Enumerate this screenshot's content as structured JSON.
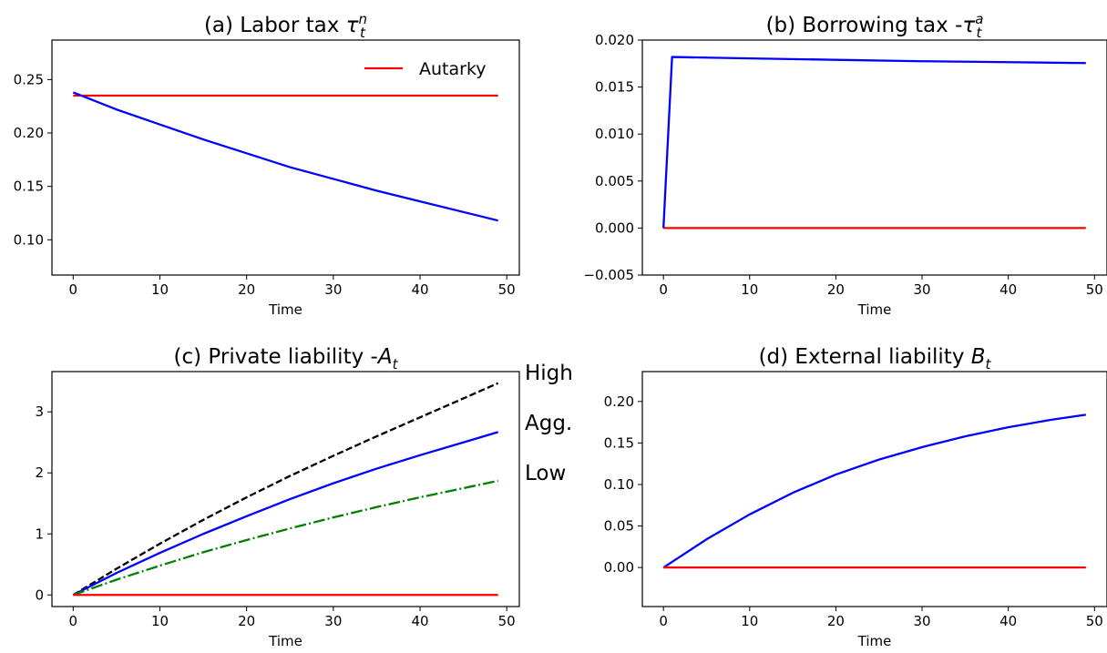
{
  "chart_data": [
    {
      "type": "line",
      "title": "(a) Labor tax",
      "title_math": {
        "sym": "τ",
        "sub": "t",
        "sup": "n",
        "prefix": ""
      },
      "xlabel": "Time",
      "ylabel": "",
      "xlim": [
        -2.45,
        51.45
      ],
      "ylim": [
        0.067,
        0.287
      ],
      "xticks": [
        0,
        10,
        20,
        30,
        40,
        50
      ],
      "yticks": [
        0.1,
        0.15,
        0.2,
        0.25
      ],
      "ytick_labels": [
        "0.10",
        "0.15",
        "0.20",
        "0.25"
      ],
      "xtick_labels": [
        "0",
        "10",
        "20",
        "30",
        "40",
        "50"
      ],
      "legend": {
        "location": "top-right",
        "entries": [
          {
            "label": "Autarky",
            "color": "#ff0000"
          }
        ]
      },
      "series": [
        {
          "name": "Autarky",
          "color": "#ff0000",
          "style": "solid",
          "x": [
            0,
            49
          ],
          "y": [
            0.235,
            0.235
          ]
        },
        {
          "color": "#0000ff",
          "style": "solid",
          "x": [
            0,
            5,
            10,
            15,
            20,
            25,
            30,
            35,
            40,
            45,
            49
          ],
          "y": [
            0.238,
            0.222,
            0.208,
            0.194,
            0.181,
            0.168,
            0.157,
            0.146,
            0.136,
            0.126,
            0.118
          ]
        }
      ]
    },
    {
      "type": "line",
      "title": "(b) Borrowing tax -",
      "title_math": {
        "sym": "τ",
        "sub": "t",
        "sup": "a",
        "prefix": "-"
      },
      "xlabel": "Time",
      "ylabel": "",
      "xlim": [
        -2.45,
        51.45
      ],
      "ylim": [
        -0.005,
        0.02
      ],
      "xticks": [
        0,
        10,
        20,
        30,
        40,
        50
      ],
      "yticks": [
        -0.005,
        0.0,
        0.005,
        0.01,
        0.015,
        0.02
      ],
      "ytick_labels": [
        "−0.005",
        "0.000",
        "0.005",
        "0.010",
        "0.015",
        "0.020"
      ],
      "xtick_labels": [
        "0",
        "10",
        "20",
        "30",
        "40",
        "50"
      ],
      "series": [
        {
          "color": "#ff0000",
          "style": "solid",
          "x": [
            0,
            49
          ],
          "y": [
            0.0,
            0.0
          ]
        },
        {
          "color": "#0000ff",
          "style": "solid",
          "x": [
            0,
            1,
            10,
            20,
            30,
            40,
            49
          ],
          "y": [
            0.0,
            0.0182,
            0.01805,
            0.0179,
            0.01775,
            0.01765,
            0.01755
          ]
        }
      ]
    },
    {
      "type": "line",
      "title": "(c) Private liability -",
      "title_math": {
        "sym": "A",
        "sub": "t",
        "sup": "",
        "prefix": "-"
      },
      "xlabel": "Time",
      "ylabel": "",
      "xlim": [
        -2.45,
        51.45
      ],
      "ylim": [
        -0.19,
        3.66
      ],
      "xticks": [
        0,
        10,
        20,
        30,
        40,
        50
      ],
      "yticks": [
        0,
        1,
        2,
        3
      ],
      "ytick_labels": [
        "0",
        "1",
        "2",
        "3"
      ],
      "xtick_labels": [
        "0",
        "10",
        "20",
        "30",
        "40",
        "50"
      ],
      "side_labels": [
        "High",
        "Agg.",
        "Low"
      ],
      "series": [
        {
          "name": "High",
          "color": "#000000",
          "style": "dashed",
          "x": [
            0,
            5,
            10,
            15,
            20,
            25,
            30,
            35,
            40,
            45,
            49
          ],
          "y": [
            0.0,
            0.43,
            0.84,
            1.23,
            1.6,
            1.95,
            2.28,
            2.6,
            2.91,
            3.22,
            3.47
          ]
        },
        {
          "name": "Agg.",
          "color": "#0000ff",
          "style": "solid",
          "x": [
            0,
            5,
            10,
            15,
            20,
            25,
            30,
            35,
            40,
            45,
            49
          ],
          "y": [
            0.0,
            0.36,
            0.69,
            1.0,
            1.29,
            1.57,
            1.83,
            2.07,
            2.29,
            2.5,
            2.67
          ]
        },
        {
          "name": "Low",
          "color": "#008000",
          "style": "dashdot",
          "x": [
            0,
            5,
            10,
            15,
            20,
            25,
            30,
            35,
            40,
            45,
            49
          ],
          "y": [
            0.0,
            0.25,
            0.48,
            0.7,
            0.9,
            1.09,
            1.27,
            1.44,
            1.6,
            1.75,
            1.87
          ]
        },
        {
          "color": "#ff0000",
          "style": "solid",
          "x": [
            0,
            49
          ],
          "y": [
            0.0,
            0.0
          ]
        }
      ]
    },
    {
      "type": "line",
      "title": "(d) External liability",
      "title_math": {
        "sym": "B",
        "sub": "t",
        "sup": "",
        "prefix": ""
      },
      "xlabel": "Time",
      "ylabel": "",
      "xlim": [
        -2.45,
        51.45
      ],
      "ylim": [
        -0.047,
        0.236
      ],
      "xticks": [
        0,
        10,
        20,
        30,
        40,
        50
      ],
      "yticks": [
        0.0,
        0.05,
        0.1,
        0.15,
        0.2
      ],
      "ytick_labels": [
        "0.00",
        "0.05",
        "0.10",
        "0.15",
        "0.20"
      ],
      "xtick_labels": [
        "0",
        "10",
        "20",
        "30",
        "40",
        "50"
      ],
      "series": [
        {
          "color": "#0000ff",
          "style": "solid",
          "x": [
            0,
            5,
            10,
            15,
            20,
            25,
            30,
            35,
            40,
            45,
            49
          ],
          "y": [
            0.0,
            0.034,
            0.064,
            0.09,
            0.112,
            0.13,
            0.145,
            0.158,
            0.169,
            0.178,
            0.184
          ]
        },
        {
          "color": "#ff0000",
          "style": "solid",
          "x": [
            0,
            49
          ],
          "y": [
            0.0,
            0.0
          ]
        }
      ]
    }
  ]
}
